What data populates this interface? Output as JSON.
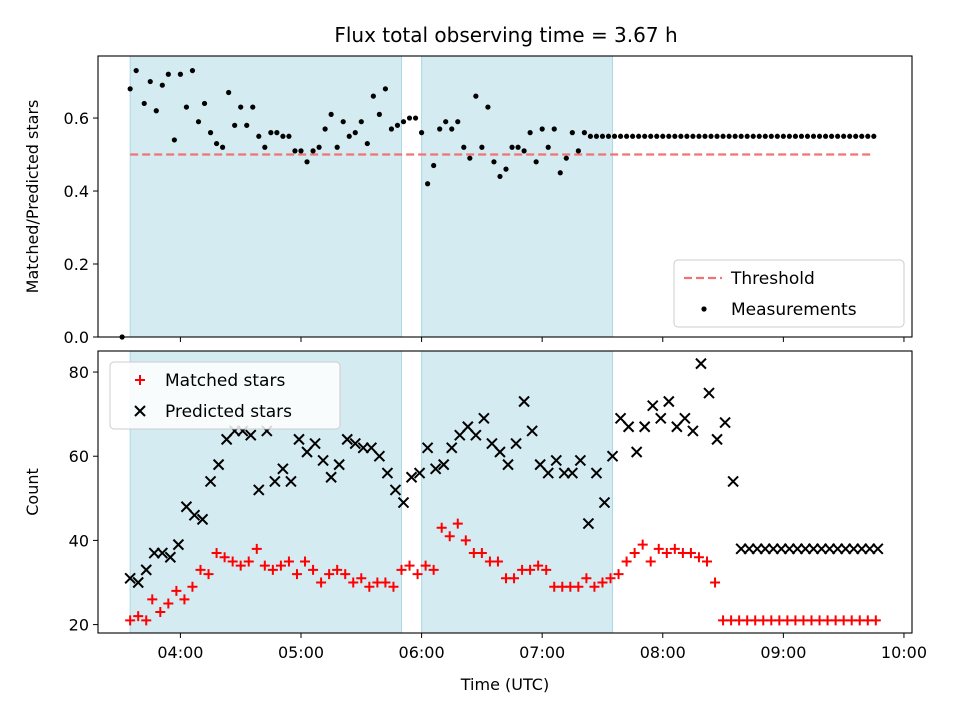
{
  "title": "Flux total observing time = 3.67 h",
  "chart_data": [
    {
      "type": "scatter",
      "ylabel": "Matched/Predicted stars",
      "xlim": [
        "03:19",
        "10:04"
      ],
      "ylim": [
        0,
        0.77
      ],
      "yticks": [
        0.0,
        0.2,
        0.4,
        0.6
      ],
      "ytick_labels": [
        "0.0",
        "0.2",
        "0.4",
        "0.6"
      ],
      "x_major_ticks": [
        "04:00",
        "05:00",
        "06:00",
        "07:00",
        "08:00",
        "09:00",
        "10:00"
      ],
      "shaded_intervals": [
        [
          "03:35",
          "05:50"
        ],
        [
          "06:00",
          "07:35"
        ]
      ],
      "threshold": {
        "name": "Threshold",
        "value": 0.5,
        "x_range": [
          "03:35",
          "09:45"
        ],
        "color": "#f07474"
      },
      "legend": {
        "position": "lower right",
        "entries": [
          "Threshold",
          "Measurements"
        ]
      },
      "series": [
        {
          "name": "Measurements",
          "color": "#000000",
          "x": [
            "03:31",
            "03:35",
            "03:38",
            "03:42",
            "03:45",
            "03:48",
            "03:51",
            "03:54",
            "03:57",
            "04:00",
            "04:03",
            "04:06",
            "04:09",
            "04:12",
            "04:15",
            "04:18",
            "04:21",
            "04:24",
            "04:27",
            "04:30",
            "04:33",
            "04:36",
            "04:39",
            "04:42",
            "04:45",
            "04:48",
            "04:51",
            "04:54",
            "04:57",
            "05:00",
            "05:03",
            "05:06",
            "05:09",
            "05:12",
            "05:15",
            "05:18",
            "05:21",
            "05:24",
            "05:27",
            "05:30",
            "05:33",
            "05:36",
            "05:39",
            "05:42",
            "05:45",
            "05:48",
            "05:51",
            "05:54",
            "05:57",
            "06:00",
            "06:03",
            "06:06",
            "06:09",
            "06:12",
            "06:15",
            "06:18",
            "06:21",
            "06:24",
            "06:27",
            "06:30",
            "06:33",
            "06:36",
            "06:39",
            "06:42",
            "06:45",
            "06:48",
            "06:51",
            "06:54",
            "06:57",
            "07:00",
            "07:03",
            "07:06",
            "07:09",
            "07:12",
            "07:15",
            "07:18",
            "07:21",
            "07:24",
            "07:27",
            "07:30",
            "07:33",
            "07:36",
            "07:39",
            "07:42",
            "07:45",
            "07:48",
            "07:51",
            "07:54",
            "07:57",
            "08:00",
            "08:03",
            "08:06",
            "08:09",
            "08:12",
            "08:15",
            "08:18",
            "08:21",
            "08:24",
            "08:27",
            "08:30",
            "08:33",
            "08:36",
            "08:39",
            "08:42",
            "08:45",
            "08:48",
            "08:51",
            "08:54",
            "08:57",
            "09:00",
            "09:03",
            "09:06",
            "09:09",
            "09:12",
            "09:15",
            "09:18",
            "09:21",
            "09:24",
            "09:27",
            "09:30",
            "09:33",
            "09:36",
            "09:39",
            "09:42",
            "09:45"
          ],
          "y": [
            0.0,
            0.68,
            0.73,
            0.64,
            0.7,
            0.62,
            0.69,
            0.72,
            0.54,
            0.72,
            0.63,
            0.73,
            0.59,
            0.64,
            0.56,
            0.53,
            0.52,
            0.67,
            0.58,
            0.63,
            0.58,
            0.63,
            0.55,
            0.52,
            0.56,
            0.56,
            0.55,
            0.55,
            0.51,
            0.51,
            0.48,
            0.51,
            0.52,
            0.57,
            0.61,
            0.52,
            0.59,
            0.55,
            0.56,
            0.59,
            0.53,
            0.66,
            0.61,
            0.68,
            0.57,
            0.58,
            0.59,
            0.6,
            0.6,
            0.56,
            0.42,
            0.47,
            0.57,
            0.59,
            0.57,
            0.59,
            0.52,
            0.49,
            0.66,
            0.52,
            0.63,
            0.48,
            0.44,
            0.46,
            0.52,
            0.52,
            0.51,
            0.56,
            0.48,
            0.57,
            0.52,
            0.57,
            0.45,
            0.49,
            0.56,
            0.51,
            0.56,
            0.55,
            0.55,
            0.55,
            0.55,
            0.55,
            0.55,
            0.55,
            0.55,
            0.55,
            0.55,
            0.55,
            0.55,
            0.55,
            0.55,
            0.55,
            0.55,
            0.55,
            0.55,
            0.55,
            0.55,
            0.55,
            0.55,
            0.55,
            0.55,
            0.55,
            0.55,
            0.55,
            0.55,
            0.55,
            0.55,
            0.55,
            0.55,
            0.55,
            0.55,
            0.55,
            0.55,
            0.55,
            0.55,
            0.55,
            0.55,
            0.55,
            0.55,
            0.55,
            0.55,
            0.55,
            0.55,
            0.55,
            0.55
          ]
        }
      ]
    },
    {
      "type": "scatter",
      "xlabel": "Time (UTC)",
      "ylabel": "Count",
      "xlim": [
        "03:19",
        "10:04"
      ],
      "ylim": [
        18,
        85
      ],
      "yticks": [
        20,
        40,
        60,
        80
      ],
      "ytick_labels": [
        "20",
        "40",
        "60",
        "80"
      ],
      "x_major_ticks": [
        "04:00",
        "05:00",
        "06:00",
        "07:00",
        "08:00",
        "09:00",
        "10:00"
      ],
      "x_tick_labels": [
        "04:00",
        "05:00",
        "06:00",
        "07:00",
        "08:00",
        "09:00",
        "10:00"
      ],
      "shaded_intervals": [
        [
          "03:35",
          "05:50"
        ],
        [
          "06:00",
          "07:35"
        ]
      ],
      "legend": {
        "position": "upper left",
        "entries": [
          "Matched stars",
          "Predicted stars"
        ]
      },
      "series": [
        {
          "name": "Matched stars",
          "marker": "plus",
          "color": "#ff0000",
          "x": [
            "03:35",
            "03:39",
            "03:43",
            "03:46",
            "03:50",
            "03:54",
            "03:58",
            "04:02",
            "04:06",
            "04:10",
            "04:14",
            "04:18",
            "04:22",
            "04:26",
            "04:30",
            "04:34",
            "04:38",
            "04:42",
            "04:46",
            "04:50",
            "04:54",
            "04:58",
            "05:02",
            "05:06",
            "05:10",
            "05:14",
            "05:18",
            "05:22",
            "05:26",
            "05:30",
            "05:34",
            "05:38",
            "05:42",
            "05:46",
            "05:50",
            "05:54",
            "05:58",
            "06:02",
            "06:06",
            "06:10",
            "06:14",
            "06:18",
            "06:22",
            "06:26",
            "06:30",
            "06:34",
            "06:38",
            "06:42",
            "06:46",
            "06:50",
            "06:54",
            "06:58",
            "07:02",
            "07:06",
            "07:10",
            "07:14",
            "07:18",
            "07:22",
            "07:26",
            "07:30",
            "07:34",
            "07:38",
            "07:42",
            "07:46",
            "07:50",
            "07:54",
            "07:58",
            "08:02",
            "08:06",
            "08:10",
            "08:14",
            "08:18",
            "08:22",
            "08:26",
            "08:30",
            "08:34",
            "08:38",
            "08:42",
            "08:46",
            "08:50",
            "08:54",
            "08:58",
            "09:02",
            "09:06",
            "09:10",
            "09:14",
            "09:18",
            "09:22",
            "09:26",
            "09:30",
            "09:34",
            "09:38",
            "09:42",
            "09:46"
          ],
          "y": [
            21,
            22,
            21,
            26,
            23,
            25,
            28,
            26,
            29,
            33,
            32,
            37,
            36,
            35,
            34,
            35,
            38,
            34,
            33,
            34,
            35,
            32,
            35,
            33,
            30,
            32,
            33,
            32,
            30,
            31,
            29,
            30,
            30,
            29,
            33,
            34,
            32,
            34,
            33,
            43,
            41,
            44,
            40,
            37,
            37,
            35,
            35,
            31,
            31,
            33,
            33,
            34,
            33,
            29,
            29,
            29,
            29,
            31,
            29,
            30,
            31,
            32,
            35,
            37,
            39,
            35,
            38,
            37,
            38,
            37,
            37,
            36,
            35,
            30,
            21,
            21,
            21,
            21,
            21,
            21,
            21,
            21,
            21,
            21,
            21,
            21,
            21,
            21,
            21,
            21,
            21,
            21,
            21,
            21
          ]
        },
        {
          "name": "Predicted stars",
          "marker": "x",
          "color": "#000000",
          "x": [
            "03:35",
            "03:39",
            "03:43",
            "03:47",
            "03:51",
            "03:55",
            "03:59",
            "04:03",
            "04:07",
            "04:11",
            "04:15",
            "04:19",
            "04:23",
            "04:27",
            "04:31",
            "04:35",
            "04:39",
            "04:43",
            "04:47",
            "04:51",
            "04:55",
            "04:59",
            "05:03",
            "05:07",
            "05:11",
            "05:15",
            "05:19",
            "05:23",
            "05:27",
            "05:31",
            "05:35",
            "05:39",
            "05:43",
            "05:47",
            "05:51",
            "05:55",
            "05:59",
            "06:03",
            "06:07",
            "06:11",
            "06:15",
            "06:19",
            "06:23",
            "06:27",
            "06:31",
            "06:35",
            "06:39",
            "06:43",
            "06:47",
            "06:51",
            "06:55",
            "06:59",
            "07:03",
            "07:07",
            "07:11",
            "07:15",
            "07:19",
            "07:23",
            "07:27",
            "07:31",
            "07:35",
            "07:39",
            "07:43",
            "07:47",
            "07:51",
            "07:55",
            "07:59",
            "08:03",
            "08:07",
            "08:11",
            "08:15",
            "08:19",
            "08:23",
            "08:27",
            "08:31",
            "08:35",
            "08:39",
            "08:43",
            "08:47",
            "08:51",
            "08:55",
            "08:59",
            "09:03",
            "09:07",
            "09:11",
            "09:15",
            "09:19",
            "09:23",
            "09:27",
            "09:31",
            "09:35",
            "09:39",
            "09:43",
            "09:47"
          ],
          "y": [
            31,
            30,
            33,
            37,
            37,
            36,
            39,
            48,
            46,
            45,
            54,
            58,
            64,
            66,
            66,
            65,
            52,
            66,
            54,
            57,
            54,
            64,
            61,
            63,
            59,
            55,
            58,
            64,
            63,
            62,
            62,
            60,
            56,
            52,
            49,
            55,
            56,
            62,
            57,
            58,
            62,
            65,
            67,
            65,
            69,
            63,
            61,
            58,
            63,
            73,
            66,
            58,
            56,
            59,
            56,
            56,
            59,
            44,
            56,
            49,
            60,
            69,
            67,
            61,
            67,
            72,
            69,
            73,
            67,
            69,
            66,
            82,
            75,
            64,
            68,
            54,
            38,
            38,
            38,
            38,
            38,
            38,
            38,
            38,
            38,
            38,
            38,
            38,
            38,
            38,
            38,
            38,
            38,
            38
          ]
        }
      ]
    }
  ]
}
